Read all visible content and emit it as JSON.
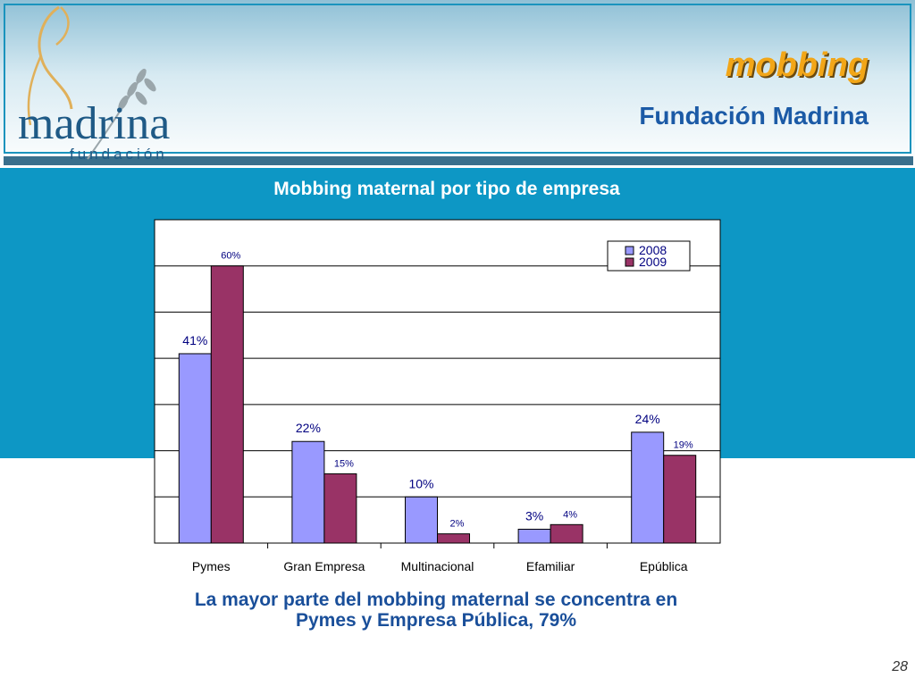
{
  "slide": {
    "title": "mobbing",
    "subtitle": "Fundación Madrina",
    "logo_text": "madrina",
    "logo_subtext": "fundación",
    "note_line1": "La mayor parte del mobbing maternal se concentra en",
    "note_line2": "Pymes y Empresa Pública, 79%",
    "page_number": "28"
  },
  "colors": {
    "header_border": "#1a93bd",
    "teal": "#0d97c5",
    "title_orange": "#f2a618",
    "subtitle_blue": "#1b5aa6",
    "series_2008": "#9999ff",
    "series_2009": "#993366"
  },
  "chart_data": {
    "type": "bar",
    "title": "Mobbing maternal por tipo de empresa",
    "categories": [
      "Pymes",
      "Gran Empresa",
      "Multinacional",
      "Efamiliar",
      "Epública"
    ],
    "series": [
      {
        "name": "2008",
        "values": [
          41,
          22,
          10,
          3,
          24
        ],
        "labels": [
          "41%",
          "22%",
          "10%",
          "3%",
          "24%"
        ]
      },
      {
        "name": "2009",
        "values": [
          60,
          15,
          2,
          4,
          19
        ],
        "labels": [
          "60%",
          "15%",
          "2%",
          "4%",
          "19%"
        ]
      }
    ],
    "ylim": [
      0,
      70
    ],
    "grid": true,
    "legend": "top-right"
  }
}
